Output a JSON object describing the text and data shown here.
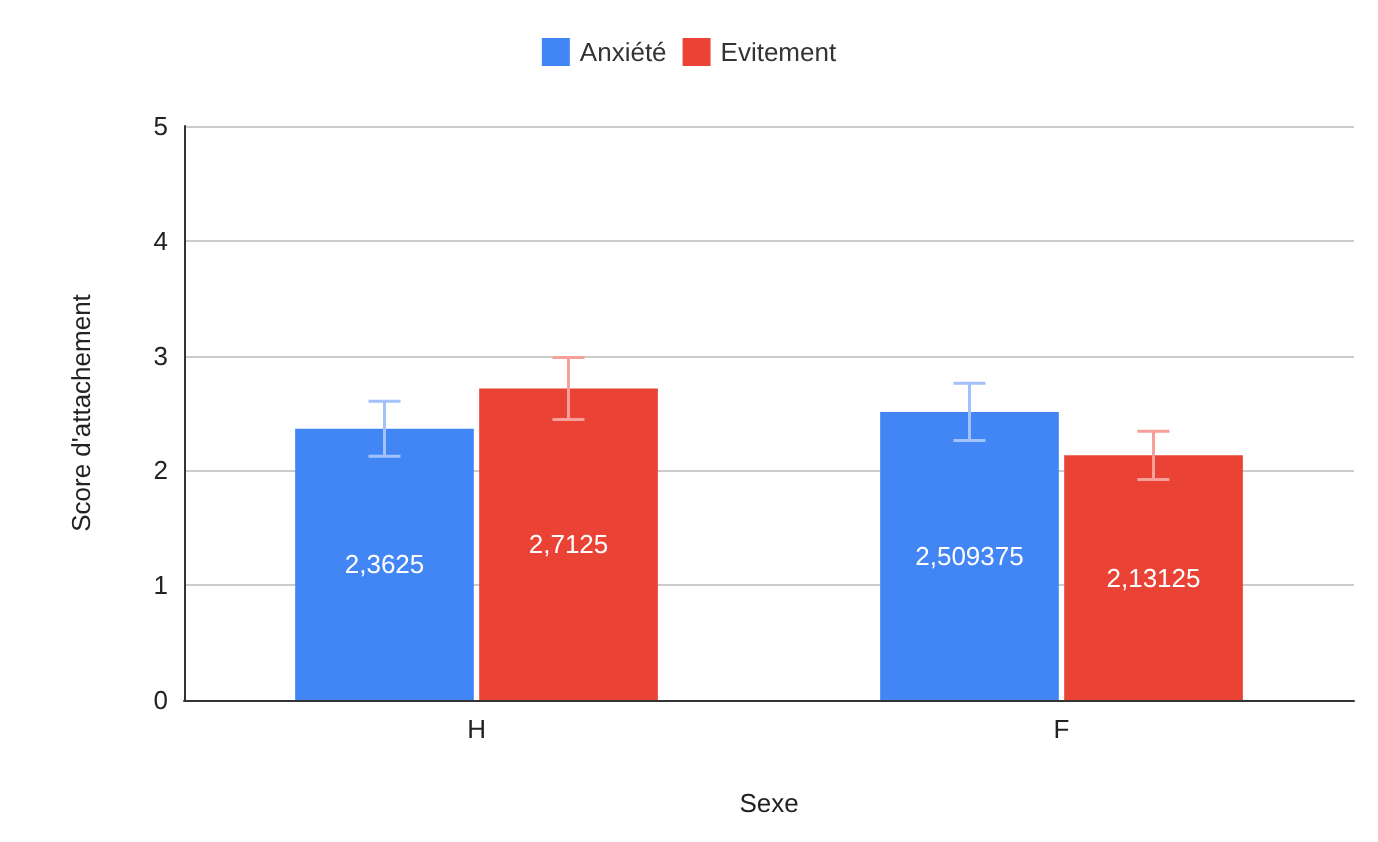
{
  "chart_data": {
    "type": "bar",
    "xlabel": "Sexe",
    "ylabel": "Score d'attachement",
    "categories": [
      "H",
      "F"
    ],
    "series": [
      {
        "name": "Anxiété",
        "color": "#4285f4",
        "values": [
          2.3625,
          2.509375
        ],
        "value_labels": [
          "2,3625",
          "2,509375"
        ],
        "errors": [
          0.24,
          0.25
        ]
      },
      {
        "name": "Evitement",
        "color": "#ea4335",
        "values": [
          2.7125,
          2.13125
        ],
        "value_labels": [
          "2,7125",
          "2,13125"
        ],
        "errors": [
          0.27,
          0.21
        ]
      }
    ],
    "ylim": [
      0,
      5
    ],
    "yticks": [
      0,
      1,
      2,
      3,
      4,
      5
    ],
    "grid": "y",
    "legend": "top"
  }
}
